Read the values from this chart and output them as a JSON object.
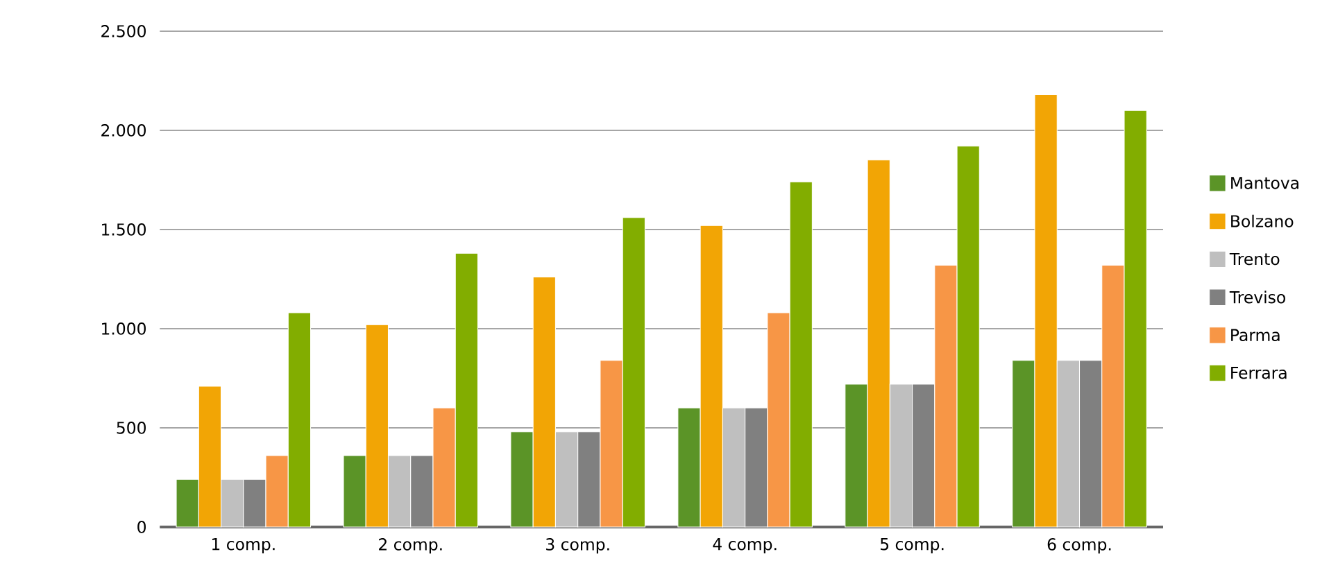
{
  "chart_data": {
    "type": "bar",
    "categories": [
      "1 comp.",
      "2 comp.",
      "3 comp.",
      "4 comp.",
      "5 comp.",
      "6 comp."
    ],
    "series": [
      {
        "name": "Mantova",
        "color": "#5b9427",
        "values": [
          240,
          360,
          480,
          600,
          720,
          840
        ]
      },
      {
        "name": "Bolzano",
        "color": "#f2a505",
        "values": [
          710,
          1020,
          1260,
          1520,
          1850,
          2180
        ]
      },
      {
        "name": "Trento",
        "color": "#bfbfbf",
        "values": [
          240,
          360,
          480,
          600,
          720,
          840
        ]
      },
      {
        "name": "Treviso",
        "color": "#808080",
        "values": [
          240,
          360,
          480,
          600,
          720,
          840
        ]
      },
      {
        "name": "Parma",
        "color": "#f79646",
        "values": [
          360,
          600,
          840,
          1080,
          1320,
          1320
        ]
      },
      {
        "name": "Ferrara",
        "color": "#82ad00",
        "values": [
          1080,
          1380,
          1560,
          1740,
          1920,
          2100
        ]
      }
    ],
    "ylim": [
      0,
      2500
    ],
    "yticks": [
      {
        "value": 0,
        "label": "0"
      },
      {
        "value": 500,
        "label": "500"
      },
      {
        "value": 1000,
        "label": "1.000"
      },
      {
        "value": 1500,
        "label": "1.500"
      },
      {
        "value": 2000,
        "label": "2.000"
      },
      {
        "value": 2500,
        "label": "2.500"
      }
    ],
    "grid": "y",
    "legend": "right"
  }
}
